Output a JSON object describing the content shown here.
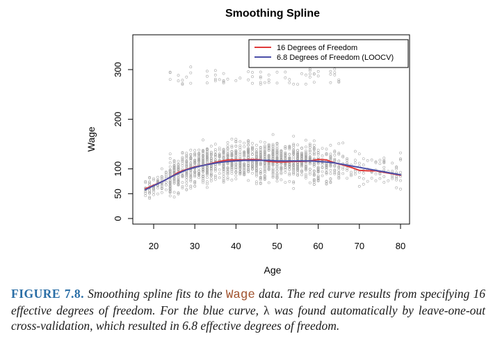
{
  "chart_data": {
    "type": "scatter",
    "title": "Smoothing Spline",
    "xlabel": "Age",
    "ylabel": "Wage",
    "xlim": [
      16,
      81
    ],
    "ylim": [
      0,
      330
    ],
    "x_ticks": [
      20,
      30,
      40,
      50,
      60,
      70,
      80
    ],
    "y_ticks": [
      0,
      50,
      100,
      200,
      300
    ],
    "points_color": "#a8a8a8",
    "legend_position": "top-right",
    "series": [
      {
        "name": "16 Degrees of Freedom",
        "color": "#e03a3a",
        "x": [
          18,
          20,
          22,
          24,
          26,
          28,
          30,
          32,
          34,
          36,
          38,
          40,
          42,
          44,
          46,
          48,
          50,
          52,
          54,
          56,
          58,
          60,
          62,
          64,
          66,
          68,
          70,
          72,
          74,
          76,
          78,
          80
        ],
        "values": [
          60,
          67,
          74,
          83,
          93,
          99,
          104,
          107,
          111,
          115,
          118,
          118,
          118,
          119,
          118,
          115,
          114,
          114,
          115,
          115,
          116,
          119,
          118,
          112,
          108,
          103,
          97,
          96,
          96,
          93,
          90,
          87
        ]
      },
      {
        "name": "6.8 Degrees of Freedom (LOOCV)",
        "color": "#4a4ea8",
        "x": [
          18,
          20,
          22,
          24,
          26,
          28,
          30,
          32,
          34,
          36,
          38,
          40,
          42,
          44,
          46,
          48,
          50,
          52,
          54,
          56,
          58,
          60,
          62,
          64,
          66,
          68,
          70,
          72,
          74,
          76,
          78,
          80
        ],
        "values": [
          58,
          66,
          74,
          83,
          91,
          98,
          103,
          107,
          110,
          113,
          115,
          116,
          117,
          117,
          117,
          117,
          116,
          116,
          116,
          116,
          116,
          115,
          114,
          112,
          109,
          106,
          103,
          100,
          97,
          94,
          91,
          88
        ]
      }
    ]
  },
  "caption": {
    "figure_label": "FIGURE 7.8.",
    "part1": "Smoothing spline fits to the",
    "code_word": "Wage",
    "part2": "data. The red curve results from specifying 16 effective degrees of freedom. For the blue curve,",
    "lambda": "λ",
    "part3": "was found automatically by leave-one-out cross-validation, which resulted in 6.8 effective degrees of freedom."
  }
}
